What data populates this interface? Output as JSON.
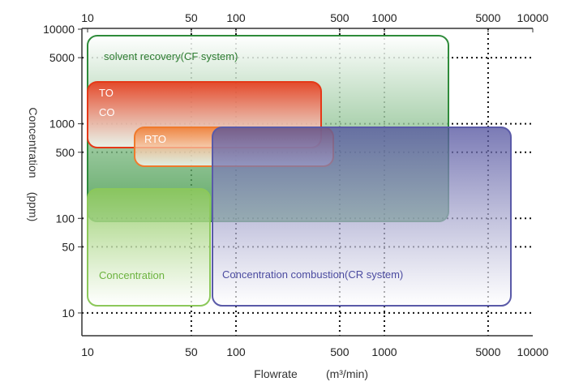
{
  "chart_data": {
    "type": "area",
    "title": "",
    "xlabel": "Flowrate",
    "xunit": "(m³/min)",
    "ylabel": "Concentration",
    "yunit": "(ppm)",
    "x_scale": "log",
    "y_scale": "log",
    "xlim": [
      10,
      10000
    ],
    "ylim": [
      7,
      10000
    ],
    "x_ticks": [
      10,
      50,
      100,
      500,
      1000,
      5000,
      10000
    ],
    "x_tick_labels": [
      "10",
      "50",
      "100",
      "500",
      "1000",
      "5000",
      "10000"
    ],
    "y_ticks": [
      10,
      50,
      100,
      500,
      1000,
      5000,
      10000
    ],
    "y_tick_labels": [
      "10",
      "50",
      "100",
      "500",
      "1000",
      "5000",
      "10000"
    ],
    "grid": true,
    "grid_style": "dotted",
    "regions": [
      {
        "name": "solvent recovery(CF system)",
        "label": "solvent recovery(CF system)",
        "x": [
          10,
          2500
        ],
        "y": [
          120,
          7500
        ],
        "color": "#2e8b3a",
        "fill_top": "#ffffff",
        "fill_bottom": "#2b8c33",
        "label_color": "#2e7d32"
      },
      {
        "name": "TO",
        "label": "TO",
        "x": [
          10,
          400
        ],
        "y": [
          700,
          3000
        ],
        "color": "#e53918",
        "fill_top": "#e63312",
        "fill_bottom": "#ffffff",
        "label_color": "#ffffff"
      },
      {
        "name": "CO",
        "label": "CO",
        "x": [
          10,
          400
        ],
        "y": [
          700,
          3000
        ],
        "color": "#e53918",
        "label_color": "#ffffff"
      },
      {
        "name": "RTO",
        "label": "RTO",
        "x": [
          25,
          800
        ],
        "y": [
          240,
          900
        ],
        "color": "#f07a2c",
        "fill_top": "#f07a2c",
        "fill_bottom": "#ffffff",
        "label_color": "#ffffff"
      },
      {
        "name": "Concentration",
        "label": "Concentration",
        "x": [
          10,
          75
        ],
        "y": [
          14,
          200
        ],
        "color": "#8cc85a",
        "fill_top": "#8cc85a",
        "fill_bottom": "#ffffff",
        "label_color": "#6cb33f"
      },
      {
        "name": "Concentration combustion(CR system)",
        "label": "Concentration combustion(CR system)",
        "x": [
          75,
          6000
        ],
        "y": [
          14,
          900
        ],
        "color": "#5a5aa8",
        "fill_top": "#51519e",
        "fill_bottom": "#ffffff",
        "label_color": "#4b4ba0"
      }
    ]
  }
}
